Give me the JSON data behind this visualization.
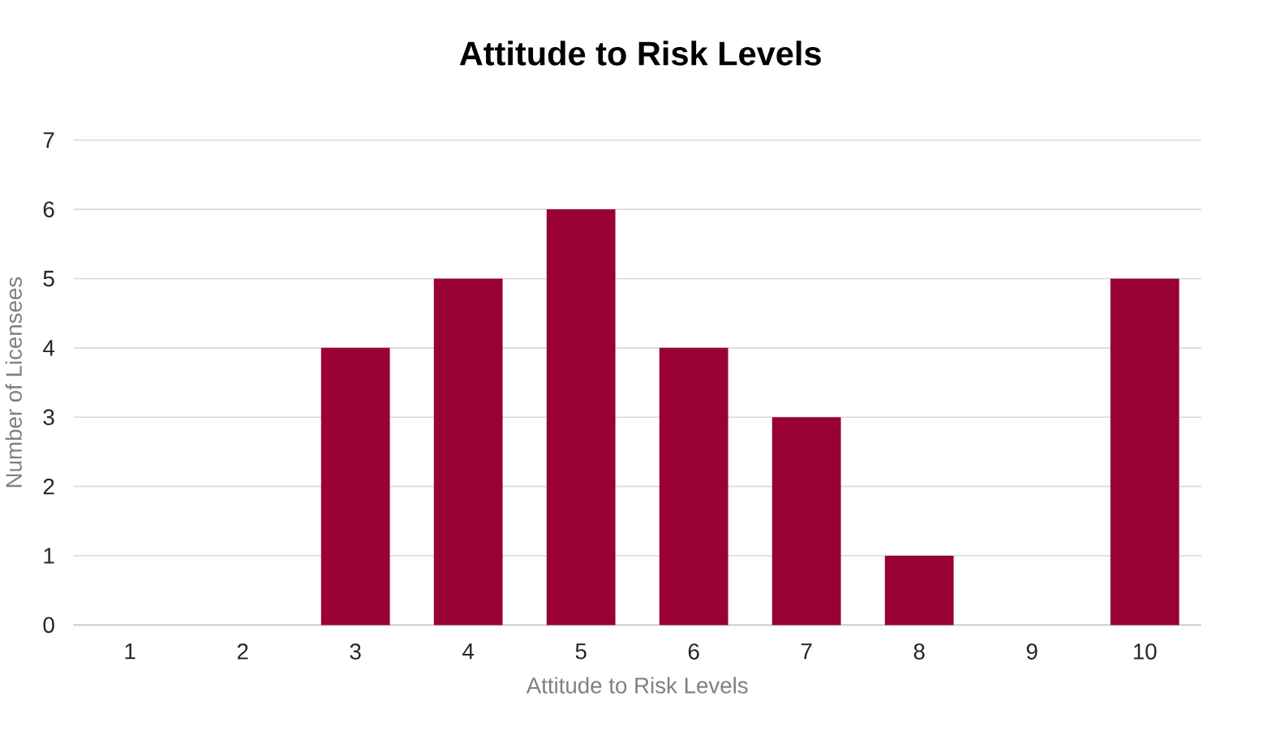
{
  "chart_data": {
    "type": "bar",
    "title": "Attitude to Risk Levels",
    "xlabel": "Attitude to Risk Levels",
    "ylabel": "Number of Licensees",
    "categories": [
      "1",
      "2",
      "3",
      "4",
      "5",
      "6",
      "7",
      "8",
      "9",
      "10"
    ],
    "values": [
      0,
      0,
      4,
      5,
      6,
      4,
      3,
      1,
      0,
      5
    ],
    "color": "#990033",
    "ylim": [
      0,
      7
    ],
    "yticks": [
      0,
      1,
      2,
      3,
      4,
      5,
      6,
      7
    ],
    "grid": "y"
  }
}
